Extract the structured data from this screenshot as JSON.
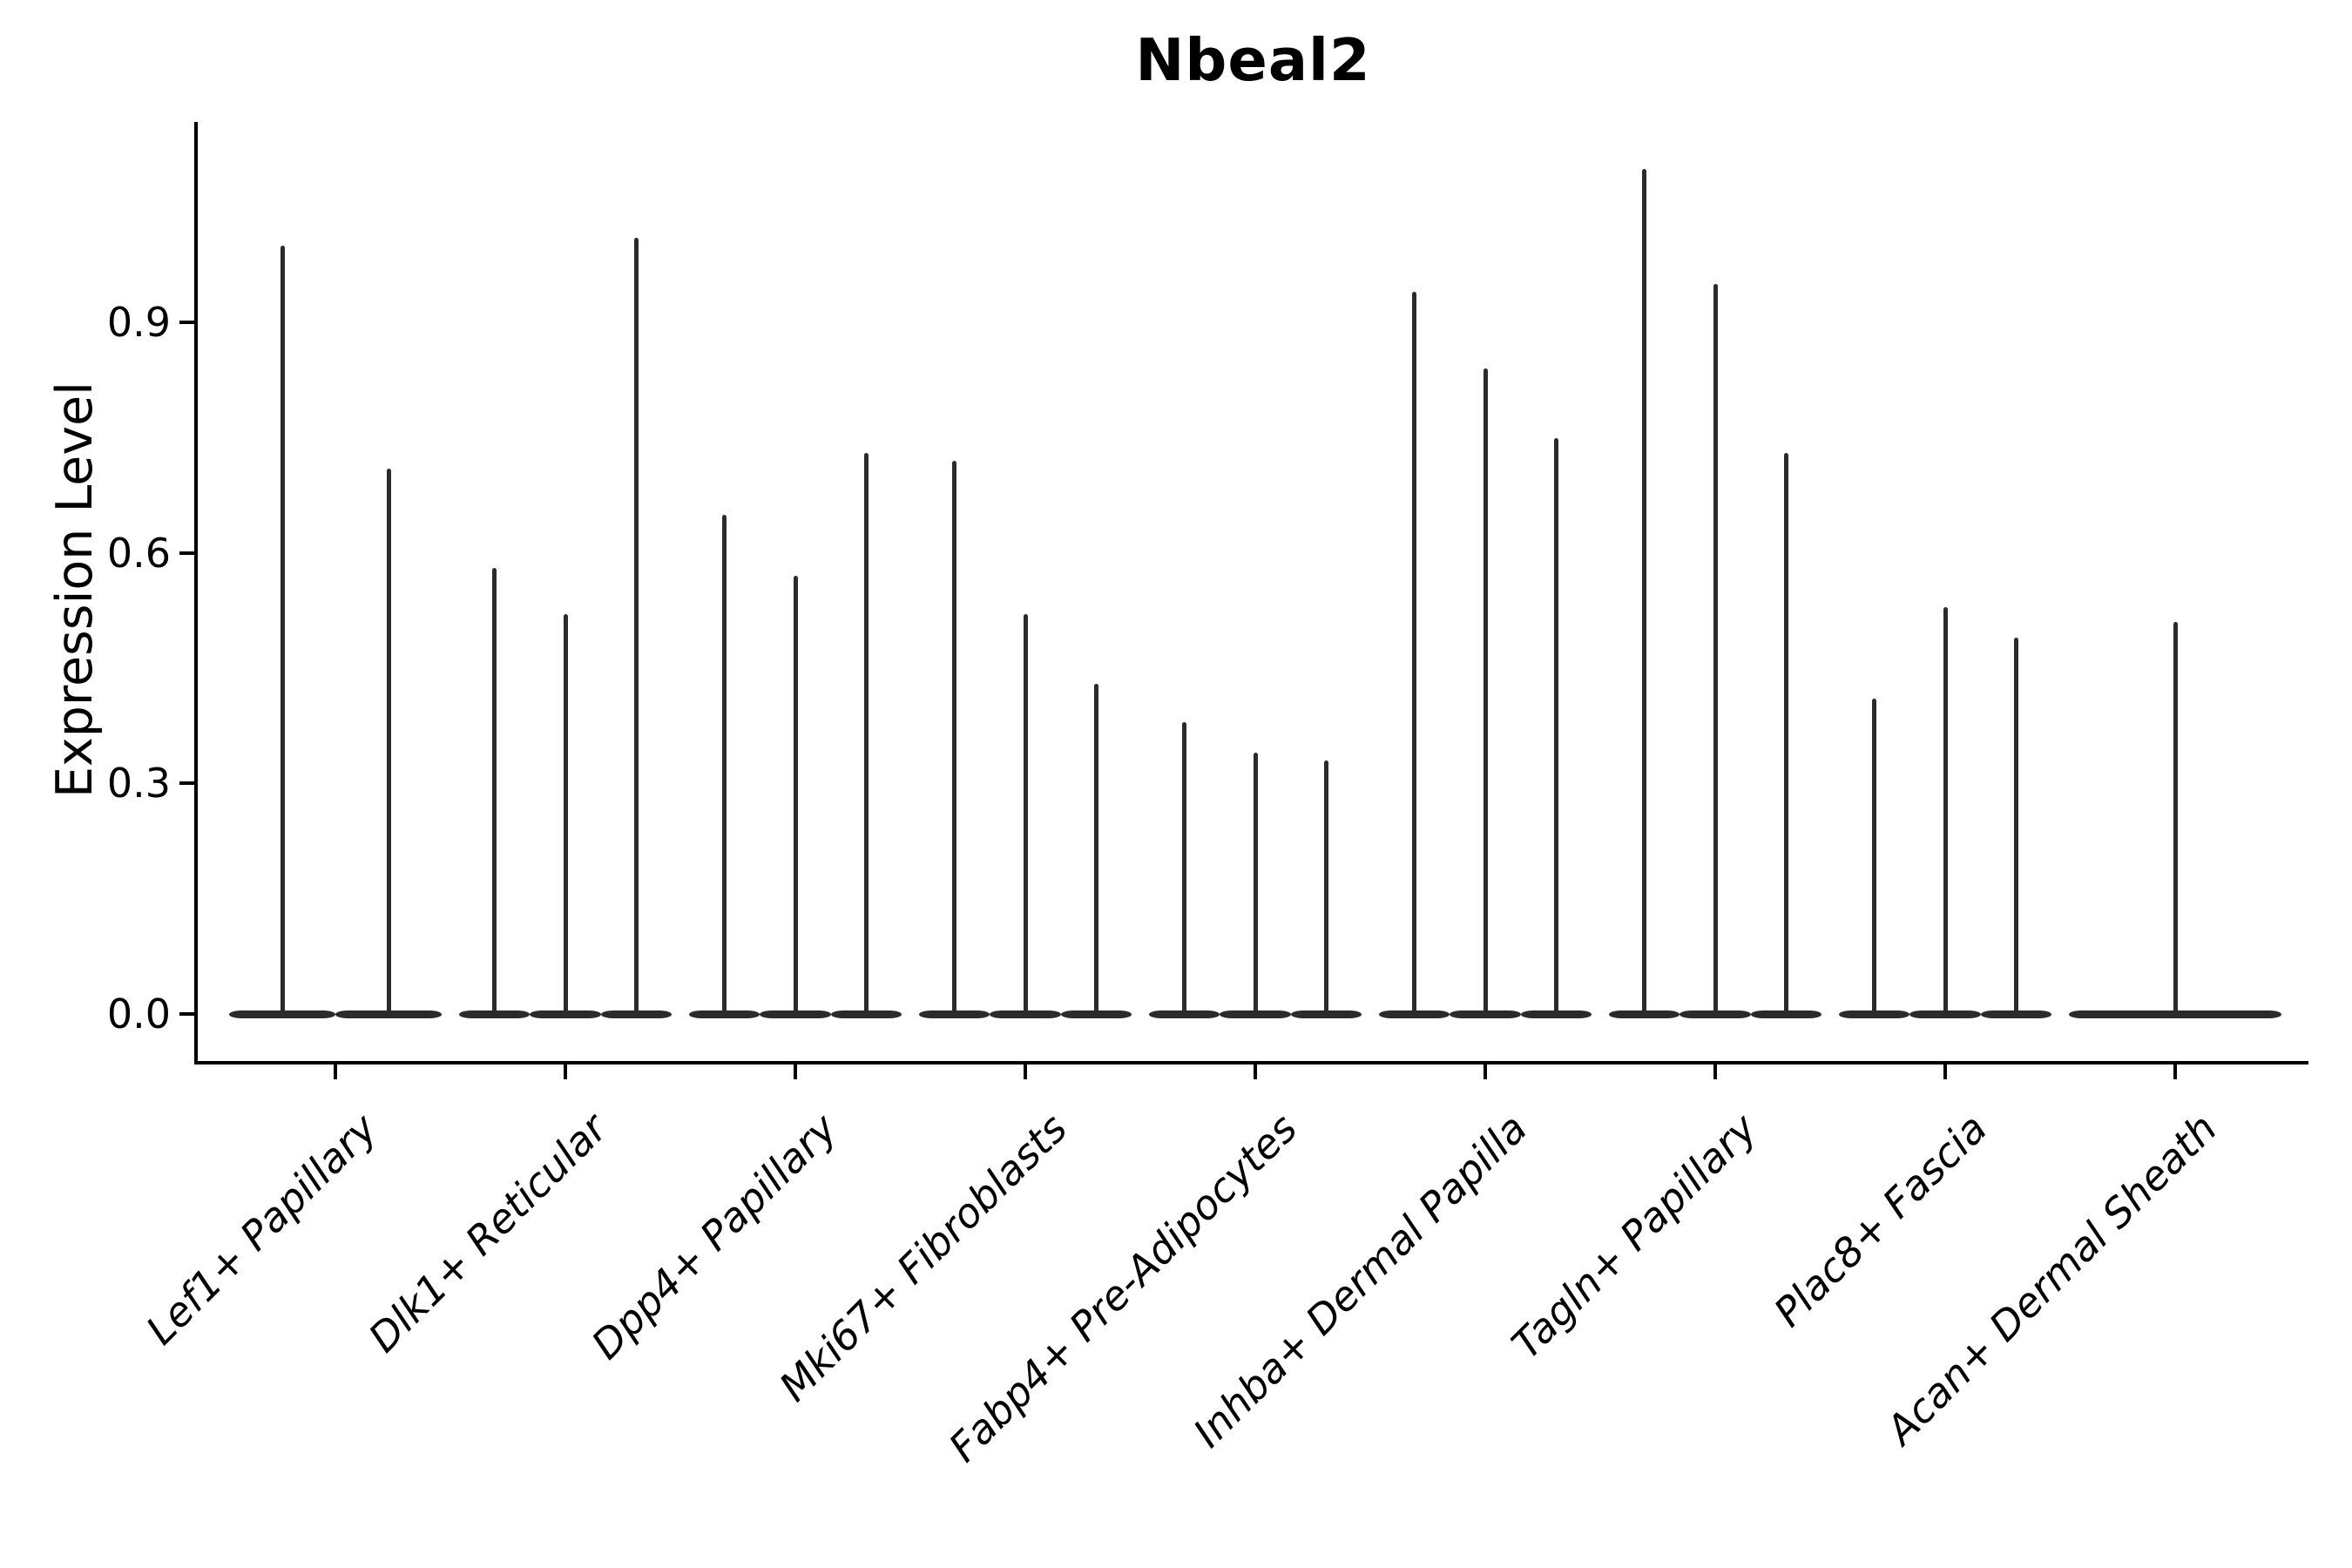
{
  "figure": {
    "title": "Nbeal2",
    "ylabel": "Expression Level"
  },
  "chart_data": {
    "type": "violin",
    "title": "Nbeal2",
    "xlabel": "",
    "ylabel": "Expression Level",
    "ytick_labels": [
      "0.0",
      "0.3",
      "0.6",
      "0.9"
    ],
    "ytick_values": [
      0.0,
      0.3,
      0.6,
      0.9
    ],
    "ylim": [
      -0.06,
      1.16
    ],
    "grid": false,
    "legend": null,
    "x_label_rotation_deg": 45,
    "x_label_style": "italic",
    "violin_color": "#2b2b2b",
    "axis_color": "#000000",
    "categories": [
      "Lef1+ Papillary",
      "Dlk1+ Reticular",
      "Dpp4+ Papillary",
      "Mki67+ Fibroblasts",
      "Fabp4+ Pre-Adipocytes",
      "Inhba+ Dermal Papilla",
      "Tagln+ Papillary",
      "Plac8+ Fascia",
      "Acan+ Dermal Sheath"
    ],
    "groups": [
      {
        "label": "Lef1+ Papillary",
        "violin_max_values": [
          1.0,
          0.71
        ]
      },
      {
        "label": "Dlk1+ Reticular",
        "violin_max_values": [
          0.58,
          0.52,
          1.01
        ]
      },
      {
        "label": "Dpp4+ Papillary",
        "violin_max_values": [
          0.65,
          0.57,
          0.73
        ]
      },
      {
        "label": "Mki67+ Fibroblasts",
        "violin_max_values": [
          0.72,
          0.52,
          0.43
        ]
      },
      {
        "label": "Fabp4+ Pre-Adipocytes",
        "violin_max_values": [
          0.38,
          0.34,
          0.33
        ]
      },
      {
        "label": "Inhba+ Dermal Papilla",
        "violin_max_values": [
          0.94,
          0.84,
          0.75
        ]
      },
      {
        "label": "Tagln+ Papillary",
        "violin_max_values": [
          1.1,
          0.95,
          0.73
        ]
      },
      {
        "label": "Plac8+ Fascia",
        "violin_max_values": [
          0.41,
          0.53,
          0.49
        ]
      },
      {
        "label": "Acan+ Dermal Sheath",
        "violin_max_values": [
          0.51
        ]
      }
    ]
  }
}
